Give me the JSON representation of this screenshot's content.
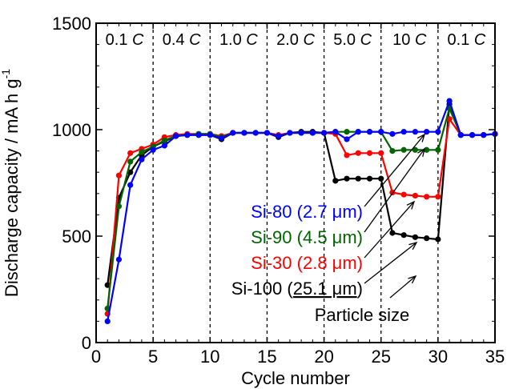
{
  "chart_data": {
    "type": "line",
    "xlabel": "Cycle number",
    "ylabel": "Discharge capacity / mA h g",
    "ylabel_superscript": "-1",
    "xlim": [
      0,
      35
    ],
    "ylim": [
      0,
      1500
    ],
    "xticks": [
      "0",
      "5",
      "10",
      "15",
      "20",
      "25",
      "30",
      "35"
    ],
    "yticks": [
      "0",
      "500",
      "1000",
      "1500"
    ],
    "regions": [
      {
        "rate": "0.1",
        "unit": "C",
        "start": 0,
        "end": 5
      },
      {
        "rate": "0.4",
        "unit": "C",
        "start": 5,
        "end": 10
      },
      {
        "rate": "1.0",
        "unit": "C",
        "start": 10,
        "end": 15
      },
      {
        "rate": "2.0",
        "unit": "C",
        "start": 15,
        "end": 20
      },
      {
        "rate": "5.0",
        "unit": "C",
        "start": 20,
        "end": 25
      },
      {
        "rate": "10",
        "unit": "C",
        "start": 25,
        "end": 30
      },
      {
        "rate": "0.1",
        "unit": "C",
        "start": 30,
        "end": 35
      }
    ],
    "x": [
      1,
      2,
      3,
      4,
      5,
      6,
      7,
      8,
      9,
      10,
      11,
      12,
      13,
      14,
      15,
      16,
      17,
      18,
      19,
      20,
      21,
      22,
      23,
      24,
      25,
      26,
      27,
      28,
      29,
      30,
      31,
      32,
      33,
      34,
      35
    ],
    "series": [
      {
        "name": "Si-80",
        "size": "2.7 μm",
        "underline": false,
        "color": "#0000ff",
        "values": [
          100,
          390,
          740,
          860,
          905,
          925,
          970,
          975,
          975,
          975,
          960,
          985,
          985,
          985,
          985,
          970,
          985,
          985,
          985,
          985,
          990,
          955,
          990,
          990,
          990,
          980,
          990,
          990,
          990,
          990,
          1135,
          975,
          975,
          975,
          980
        ]
      },
      {
        "name": "Si-90",
        "size": "4.5 μm",
        "underline": false,
        "color": "#006400",
        "values": [
          160,
          640,
          850,
          895,
          920,
          950,
          970,
          975,
          980,
          980,
          965,
          985,
          985,
          985,
          985,
          970,
          985,
          985,
          985,
          985,
          990,
          990,
          990,
          990,
          990,
          900,
          905,
          905,
          905,
          905,
          1100,
          975,
          975,
          975,
          980
        ]
      },
      {
        "name": "Si-30",
        "size": "2.8 μm",
        "underline": false,
        "color": "#ff0000",
        "values": [
          135,
          785,
          890,
          910,
          930,
          965,
          975,
          980,
          980,
          980,
          970,
          985,
          985,
          985,
          985,
          975,
          985,
          985,
          985,
          985,
          980,
          880,
          890,
          890,
          890,
          705,
          695,
          690,
          685,
          685,
          1050,
          975,
          975,
          975,
          980
        ]
      },
      {
        "name": "Si-100",
        "size": "25.1 μm",
        "underline": true,
        "color": "#000000",
        "values": [
          270,
          680,
          800,
          880,
          920,
          945,
          970,
          975,
          975,
          975,
          955,
          985,
          985,
          985,
          985,
          965,
          985,
          990,
          990,
          985,
          760,
          770,
          770,
          770,
          770,
          515,
          505,
          495,
          490,
          485,
          1120,
          975,
          975,
          975,
          980
        ]
      }
    ],
    "legend": {
      "placement": "inside-bottom-center",
      "caption": "Particle size"
    }
  }
}
